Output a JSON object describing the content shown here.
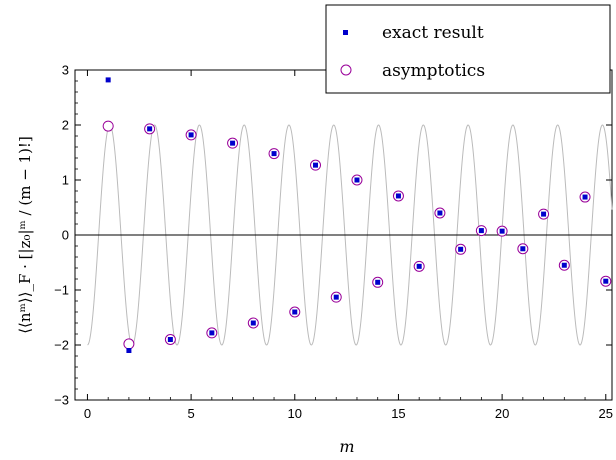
{
  "chart_data": {
    "type": "scatter",
    "title": "",
    "xlabel": "m",
    "ylabel": "⟨⟨nᵐ⟩⟩_F · [|z₀|ᵐ / (m − 1)!]",
    "xlim": [
      -0.6,
      25.3
    ],
    "ylim": [
      -3,
      3
    ],
    "x_ticks": [
      0,
      5,
      10,
      15,
      20,
      25
    ],
    "y_ticks": [
      -3,
      -2,
      -1,
      0,
      1,
      2,
      3
    ],
    "grid": false,
    "legend_position": "top-right",
    "series": [
      {
        "name": "exact result",
        "marker": "filled-square",
        "color": "#0000cc",
        "x": [
          1,
          2,
          3,
          4,
          5,
          6,
          7,
          8,
          9,
          10,
          11,
          12,
          13,
          14,
          15,
          16,
          17,
          18,
          19,
          20,
          21,
          22,
          23,
          24,
          25
        ],
        "y": [
          2.82,
          -2.1,
          1.93,
          -1.9,
          1.82,
          -1.78,
          1.67,
          -1.6,
          1.48,
          -1.4,
          1.27,
          -1.13,
          1.0,
          -0.86,
          0.71,
          -0.57,
          0.4,
          -0.26,
          0.08,
          0.07,
          -0.25,
          0.38,
          -0.55,
          0.69,
          -0.84
        ]
      },
      {
        "name": "asymptotics",
        "marker": "open-circle",
        "color": "#990099",
        "x": [
          1,
          2,
          3,
          4,
          5,
          6,
          7,
          8,
          9,
          10,
          11,
          12,
          13,
          14,
          15,
          16,
          17,
          18,
          19,
          20,
          21,
          22,
          23,
          24,
          25
        ],
        "y": [
          1.98,
          -1.98,
          1.93,
          -1.9,
          1.82,
          -1.78,
          1.67,
          -1.6,
          1.48,
          -1.4,
          1.27,
          -1.13,
          1.0,
          -0.86,
          0.71,
          -0.57,
          0.4,
          -0.26,
          0.08,
          0.07,
          -0.25,
          0.38,
          -0.55,
          0.69,
          -0.84
        ]
      }
    ],
    "background_curve": {
      "color": "#bbbbbb",
      "amplitude": 2,
      "period": 2.16,
      "phase_zero_at": 0.54
    }
  }
}
